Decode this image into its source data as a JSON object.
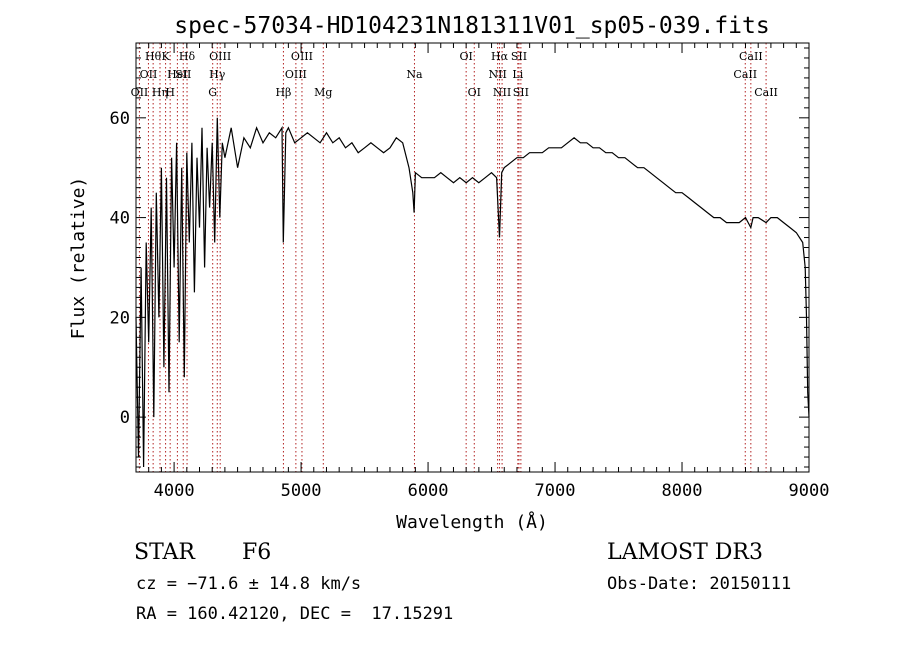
{
  "chart_data": {
    "type": "line",
    "title": "spec-57034-HD104231N181311V01_sp05-039.fits",
    "xlabel": "Wavelength (Å)",
    "ylabel": "Flux (relative)",
    "xlim": [
      3700,
      9000
    ],
    "ylim": [
      -11,
      75
    ],
    "xticks": [
      4000,
      5000,
      6000,
      7000,
      8000,
      9000
    ],
    "yticks": [
      0,
      20,
      40,
      60
    ],
    "grid": false,
    "series": [
      {
        "x": [
          3700,
          3720,
          3740,
          3760,
          3780,
          3800,
          3820,
          3840,
          3860,
          3880,
          3900,
          3920,
          3940,
          3960,
          3980,
          4000,
          4020,
          4040,
          4060,
          4080,
          4100,
          4120,
          4140,
          4160,
          4180,
          4200,
          4220,
          4240,
          4260,
          4280,
          4300,
          4320,
          4340,
          4360,
          4380,
          4400,
          4450,
          4500,
          4550,
          4600,
          4650,
          4700,
          4750,
          4800,
          4850,
          4860,
          4880,
          4900,
          4950,
          5000,
          5050,
          5100,
          5150,
          5200,
          5250,
          5300,
          5350,
          5400,
          5450,
          5500,
          5550,
          5600,
          5650,
          5700,
          5750,
          5800,
          5850,
          5880,
          5890,
          5900,
          5950,
          6000,
          6050,
          6100,
          6150,
          6200,
          6250,
          6300,
          6350,
          6400,
          6450,
          6500,
          6540,
          6563,
          6580,
          6600,
          6650,
          6700,
          6750,
          6800,
          6850,
          6900,
          6950,
          7000,
          7050,
          7100,
          7150,
          7200,
          7250,
          7300,
          7350,
          7400,
          7450,
          7500,
          7550,
          7600,
          7650,
          7700,
          7750,
          7800,
          7850,
          7900,
          7950,
          8000,
          8050,
          8100,
          8150,
          8200,
          8250,
          8300,
          8350,
          8400,
          8450,
          8500,
          8542,
          8560,
          8600,
          8662,
          8700,
          8750,
          8800,
          8850,
          8900,
          8950,
          8970,
          8980,
          8990,
          9000
        ],
        "y": [
          20,
          -8,
          30,
          -10,
          35,
          15,
          42,
          0,
          45,
          20,
          50,
          10,
          48,
          5,
          52,
          30,
          55,
          15,
          50,
          8,
          53,
          35,
          55,
          25,
          52,
          38,
          58,
          30,
          54,
          42,
          55,
          35,
          60,
          40,
          55,
          52,
          58,
          50,
          56,
          54,
          58,
          55,
          57,
          56,
          58,
          35,
          57,
          58,
          55,
          56,
          57,
          56,
          55,
          57,
          55,
          56,
          54,
          55,
          53,
          54,
          55,
          54,
          53,
          54,
          56,
          55,
          50,
          45,
          41,
          49,
          48,
          48,
          48,
          49,
          48,
          47,
          48,
          47,
          48,
          47,
          48,
          49,
          48,
          36,
          49,
          50,
          51,
          52,
          52,
          53,
          53,
          53,
          54,
          54,
          54,
          55,
          56,
          55,
          55,
          54,
          54,
          53,
          53,
          52,
          52,
          51,
          50,
          50,
          49,
          48,
          47,
          46,
          45,
          45,
          44,
          43,
          42,
          41,
          40,
          40,
          39,
          39,
          39,
          40,
          38,
          40,
          40,
          39,
          40,
          40,
          39,
          38,
          37,
          35,
          30,
          20,
          5,
          0
        ]
      }
    ],
    "lines": [
      {
        "wavelength": 3727,
        "label": "OII",
        "row": 3
      },
      {
        "wavelength": 3798,
        "label": "OII",
        "row": 2
      },
      {
        "wavelength": 3835,
        "label": "Hθ",
        "row": 1
      },
      {
        "wavelength": 3889,
        "label": "Hη",
        "row": 3
      },
      {
        "wavelength": 3933,
        "label": "K",
        "row": 1
      },
      {
        "wavelength": 3969,
        "label": "H",
        "row": 3
      },
      {
        "wavelength": 4026,
        "label": "HeI",
        "row": 2
      },
      {
        "wavelength": 4072,
        "label": "SII",
        "row": 2
      },
      {
        "wavelength": 4102,
        "label": "Hδ",
        "row": 1
      },
      {
        "wavelength": 4304,
        "label": "G",
        "row": 3
      },
      {
        "wavelength": 4340,
        "label": "Hγ",
        "row": 2
      },
      {
        "wavelength": 4363,
        "label": "OIII",
        "row": 1
      },
      {
        "wavelength": 4861,
        "label": "Hβ",
        "row": 3
      },
      {
        "wavelength": 4959,
        "label": "OIII",
        "row": 2
      },
      {
        "wavelength": 5007,
        "label": "OIII",
        "row": 1
      },
      {
        "wavelength": 5175,
        "label": "Mg",
        "row": 3
      },
      {
        "wavelength": 5893,
        "label": "Na",
        "row": 2
      },
      {
        "wavelength": 6300,
        "label": "OI",
        "row": 1
      },
      {
        "wavelength": 6364,
        "label": "OI",
        "row": 3
      },
      {
        "wavelength": 6548,
        "label": "NII",
        "row": 2
      },
      {
        "wavelength": 6563,
        "label": "Hα",
        "row": 1
      },
      {
        "wavelength": 6583,
        "label": "NII",
        "row": 3
      },
      {
        "wavelength": 6707,
        "label": "Li",
        "row": 2
      },
      {
        "wavelength": 6716,
        "label": "SII",
        "row": 1
      },
      {
        "wavelength": 6731,
        "label": "SII",
        "row": 3
      },
      {
        "wavelength": 8498,
        "label": "CaII",
        "row": 2
      },
      {
        "wavelength": 8542,
        "label": "CaII",
        "row": 1
      },
      {
        "wavelength": 8662,
        "label": "CaII",
        "row": 3
      }
    ]
  },
  "info": {
    "class": "STAR",
    "subclass": "F6",
    "survey": "LAMOST DR3",
    "cz": "cz = −71.6 ± 14.8 km/s",
    "obs_date": "Obs-Date: 20150111",
    "radec": "RA = 160.42120, DEC =  17.15291"
  },
  "colors": {
    "line_marker": "#b22222",
    "spectrum": "#000000"
  }
}
